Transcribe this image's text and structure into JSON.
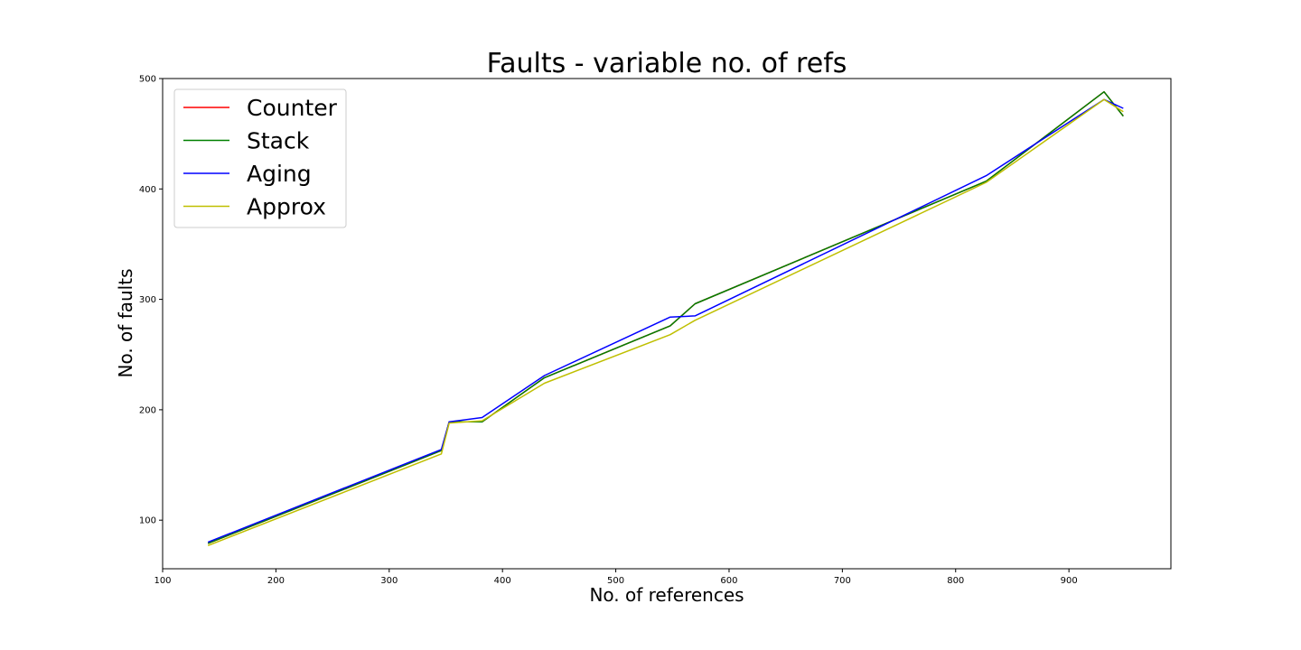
{
  "chart_data": {
    "type": "line",
    "title": "Faults - variable no. of refs",
    "xlabel": "No. of references",
    "ylabel": "No. of faults",
    "xlim": [
      100,
      990
    ],
    "ylim": [
      56,
      500
    ],
    "xticks": [
      100,
      200,
      300,
      400,
      500,
      600,
      700,
      800,
      900
    ],
    "yticks": [
      100,
      200,
      300,
      400,
      500
    ],
    "grid": false,
    "legend_position": "top-left",
    "series": [
      {
        "name": "Counter",
        "color": "#ff0000",
        "x": [
          140,
          346,
          353,
          382,
          437,
          548,
          570,
          827,
          931,
          948
        ],
        "y": [
          79,
          163,
          189,
          189,
          229,
          276,
          296,
          407,
          488,
          466
        ]
      },
      {
        "name": "Stack",
        "color": "#008000",
        "x": [
          140,
          346,
          353,
          382,
          437,
          548,
          570,
          827,
          931,
          948
        ],
        "y": [
          79,
          163,
          189,
          189,
          229,
          276,
          296,
          407,
          488,
          466
        ]
      },
      {
        "name": "Aging",
        "color": "#0000ff",
        "x": [
          140,
          346,
          353,
          382,
          437,
          548,
          570,
          827,
          931,
          948
        ],
        "y": [
          80,
          164,
          189,
          193,
          231,
          284,
          285,
          412,
          481,
          473
        ]
      },
      {
        "name": "Approx",
        "color": "#bfbf00",
        "x": [
          140,
          346,
          353,
          382,
          437,
          548,
          570,
          827,
          931,
          948
        ],
        "y": [
          77,
          160,
          188,
          190,
          224,
          268,
          281,
          406,
          481,
          470
        ]
      }
    ]
  }
}
